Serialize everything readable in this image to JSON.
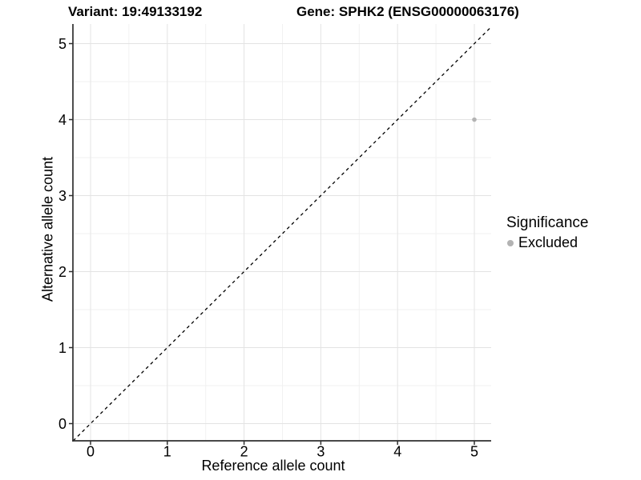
{
  "title": {
    "variant": "Variant: 19:49133192",
    "gene": "Gene: SPHK2 (ENSG00000063176)"
  },
  "axes": {
    "x_label": "Reference allele count",
    "y_label": "Alternative allele count"
  },
  "legend": {
    "title": "Significance",
    "items": [
      {
        "label": "Excluded",
        "color": "#b3b3b3"
      }
    ]
  },
  "colors": {
    "background": "#ffffff",
    "grid_major": "#e3e3e3",
    "grid_minor": "#f1f1f1",
    "axis_line": "#2f2f2f",
    "tick_text": "#000000",
    "identity_line": "#000000",
    "excluded_point": "#b3b3b3"
  },
  "chart_data": {
    "type": "scatter",
    "title": "Variant: 19:49133192 — Gene: SPHK2 (ENSG00000063176)",
    "xlabel": "Reference allele count",
    "ylabel": "Alternative allele count",
    "xlim": [
      -0.23,
      5.22
    ],
    "ylim": [
      -0.23,
      5.26
    ],
    "x_ticks": [
      0,
      1,
      2,
      3,
      4,
      5
    ],
    "y_ticks": [
      0,
      1,
      2,
      3,
      4,
      5
    ],
    "grid": {
      "major": true,
      "minor": true
    },
    "series": [
      {
        "name": "Excluded",
        "color": "#b3b3b3",
        "points": [
          {
            "x": 5,
            "y": 4
          }
        ]
      }
    ],
    "reference_line": {
      "type": "identity",
      "slope": 1,
      "intercept": 0,
      "style": "dashed",
      "color": "#000000"
    },
    "legend_position": "right",
    "legend_title": "Significance"
  }
}
